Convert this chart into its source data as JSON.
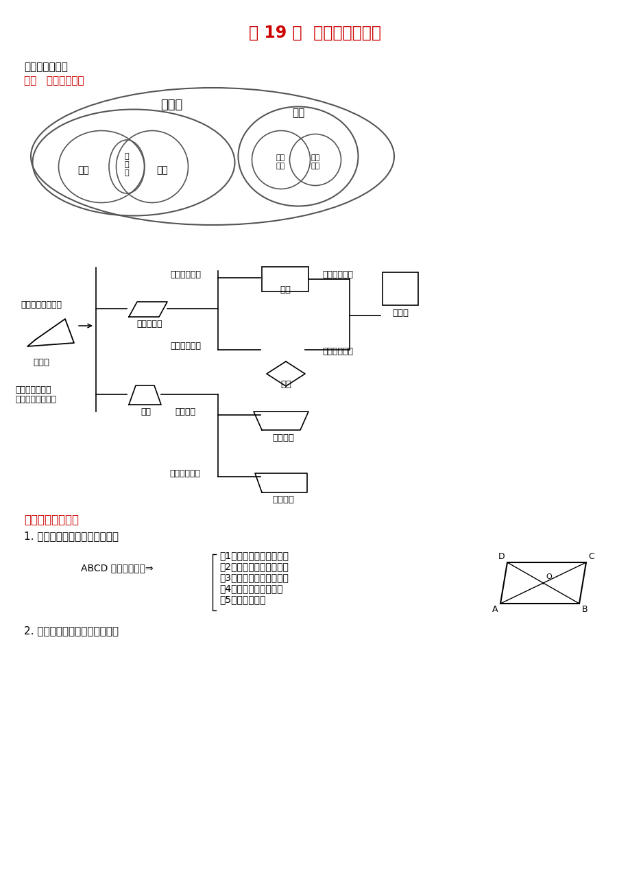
{
  "title": "第 19 章  四边形知识归纳",
  "title_color": "#cc0000",
  "title_fontsize": 16,
  "bg_color": "#ffffff",
  "section1_label": "四边形知识点：",
  "section1_sub": "一、   关系结构图：",
  "section2_label": "二、知识点讲解：",
  "point1_label": "1. 平行四边形的性质（重点）：",
  "point2_label": "2. 平行四边形的判定（难点）：",
  "parallelogram_props": [
    "（1）两组对边分别平行；",
    "（2）两组对边分别相等；",
    "（3）两组对角分别相等；",
    "（4）对角线互相平分；",
    "（5）邻角互补．"
  ],
  "abcd_text": "ABCD 是平行四边形⇒"
}
